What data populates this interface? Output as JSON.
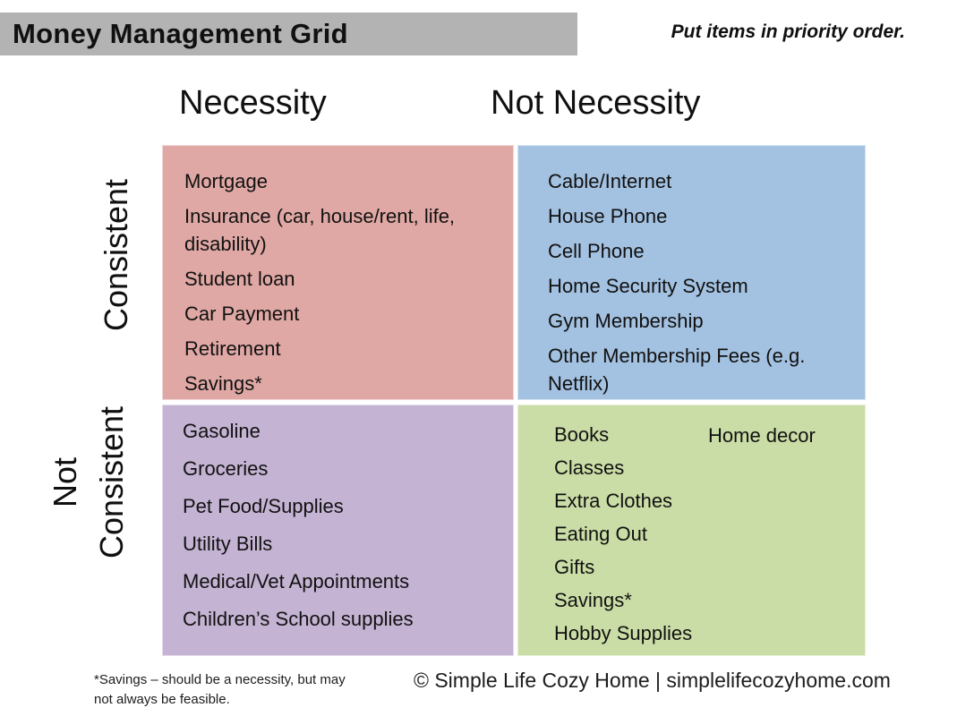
{
  "header": {
    "title": "Money Management Grid",
    "tagline": "Put items in priority order.",
    "title_bar_color": "#b3b3b3"
  },
  "axes": {
    "column_left": "Necessity",
    "column_right": "Not Necessity",
    "row_top": "Consistent",
    "row_bottom_line1": "Not",
    "row_bottom_line2": "Consistent"
  },
  "quadrants": {
    "consistent_necessity": {
      "color": "#dfa8a4",
      "items": [
        "Mortgage",
        "Insurance (car, house/rent, life, disability)",
        "Student loan",
        "Car Payment",
        "Retirement",
        "Savings*"
      ]
    },
    "consistent_not_necessity": {
      "color": "#a3c1e0",
      "items": [
        "Cable/Internet",
        "House Phone",
        "Cell Phone",
        "Home Security System",
        "Gym Membership",
        "Other Membership Fees (e.g. Netflix)"
      ]
    },
    "not_consistent_necessity": {
      "color": "#c4b3d3",
      "items": [
        "Gasoline",
        "Groceries",
        "Pet Food/Supplies",
        "Utility Bills",
        "Medical/Vet Appointments",
        "Children’s School supplies"
      ]
    },
    "not_consistent_not_necessity": {
      "color": "#cbdda6",
      "items": [
        "Books",
        "Classes",
        "Extra Clothes",
        "Eating Out",
        "Gifts",
        "Savings*",
        "Hobby Supplies"
      ],
      "item_right": "Home decor"
    }
  },
  "footer": {
    "note_line1": "*Savings – should be a necessity, but may",
    "note_line2": "not always be feasible.",
    "copyright": "© Simple Life Cozy Home | simplelifecozyhome.com"
  }
}
